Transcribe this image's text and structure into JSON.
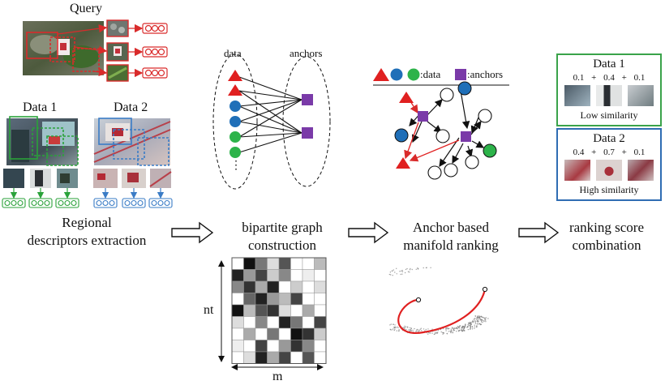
{
  "query": {
    "title": "Query"
  },
  "datasets": {
    "data1": "Data 1",
    "data2": "Data 2"
  },
  "stages": {
    "extraction": [
      "Regional",
      "descriptors extraction"
    ],
    "bipartite": [
      "bipartite graph",
      "construction"
    ],
    "ranking": [
      "Anchor based",
      "manifold ranking"
    ],
    "combination": [
      "ranking score",
      "combination"
    ]
  },
  "graph": {
    "data_label": "data",
    "anchors_label": "anchors",
    "dots": "⋮"
  },
  "legend": {
    "data_text": ":data",
    "anchors_text": ":anchors"
  },
  "matrix": {
    "rows_label": "nt",
    "cols_label": "m"
  },
  "result_panels": [
    {
      "title": "Data 1",
      "scores": [
        "0.1",
        "+",
        "0.4",
        "+",
        "0.1"
      ],
      "verdict": "Low similarity",
      "border": "#3aa34a"
    },
    {
      "title": "Data 2",
      "scores": [
        "0.4",
        "+",
        "0.7",
        "+",
        "0.1"
      ],
      "verdict": "High similarity",
      "border": "#2f6db3"
    }
  ],
  "colors": {
    "red": "#e02020",
    "blue": "#1f6fb8",
    "green": "#2db34a",
    "purple": "#7a3aa8",
    "query_box": "#d92b2b",
    "data1_box": "#2aa23a",
    "data2_box": "#3a7cc6"
  }
}
